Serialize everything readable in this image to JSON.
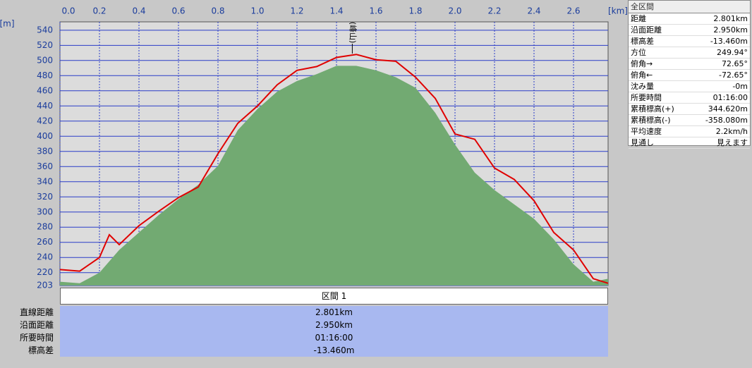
{
  "chart_data": {
    "type": "area-line",
    "x_unit": "[km]",
    "y_unit": "[m]",
    "annotation": "(峰山)",
    "annotation_x": 1.48,
    "x": [
      0,
      0.1,
      0.2,
      0.25,
      0.3,
      0.4,
      0.5,
      0.6,
      0.7,
      0.8,
      0.9,
      1.0,
      1.1,
      1.2,
      1.3,
      1.4,
      1.5,
      1.6,
      1.7,
      1.8,
      1.9,
      2.0,
      2.1,
      2.2,
      2.3,
      2.4,
      2.5,
      2.6,
      2.7,
      2.775
    ],
    "series": [
      {
        "kind": "area",
        "color": "#72aa72",
        "values": [
          208,
          206,
          220,
          235,
          250,
          273,
          296,
          317,
          336,
          361,
          408,
          436,
          459,
          473,
          482,
          493,
          493,
          487,
          478,
          464,
          431,
          389,
          352,
          329,
          310,
          291,
          264,
          231,
          208,
          212
        ]
      },
      {
        "kind": "line",
        "color": "#e00000",
        "values": [
          224,
          222,
          240,
          270,
          257,
          282,
          301,
          319,
          333,
          377,
          417,
          440,
          468,
          487,
          492,
          504,
          508,
          501,
          499,
          478,
          450,
          403,
          396,
          358,
          343,
          315,
          273,
          250,
          212,
          206
        ]
      }
    ],
    "xlim": [
      0,
      2.775
    ],
    "xticks": [
      {
        "value": 0,
        "label": "0.0"
      },
      0.2,
      0.4,
      0.6,
      0.8,
      {
        "value": 1,
        "label": "1.0"
      },
      1.2,
      1.4,
      1.6,
      1.8,
      {
        "value": 2,
        "label": "2.0"
      },
      2.2,
      2.4,
      2.6
    ],
    "ylim": [
      203,
      551
    ],
    "yticks": [
      203,
      220,
      240,
      260,
      280,
      300,
      320,
      340,
      360,
      380,
      400,
      420,
      440,
      460,
      480,
      500,
      520,
      540
    ],
    "grid": true
  },
  "summary_panel": {
    "title": "全区間",
    "rows": [
      [
        "距離",
        "2.801km"
      ],
      [
        "沿面距離",
        "2.950km"
      ],
      [
        "標高差",
        "-13.460m"
      ],
      [
        "方位",
        "249.94°"
      ],
      [
        "俯角→",
        "72.65°"
      ],
      [
        "俯角←",
        "-72.65°"
      ],
      [
        "沈み量",
        "-0m"
      ],
      [
        "所要時間",
        "01:16:00"
      ],
      [
        "累積標高(+)",
        "344.620m"
      ],
      [
        "累積標高(-)",
        "-358.080m"
      ],
      [
        "平均速度",
        "2.2km/h"
      ],
      [
        "見通し",
        "見えます"
      ]
    ]
  },
  "section_table": {
    "title": "区間 1",
    "rows": [
      [
        "直線距離",
        "2.801km"
      ],
      [
        "沿面距離",
        "2.950km"
      ],
      [
        "所要時間",
        "01:16:00"
      ],
      [
        "標高差",
        "-13.460m"
      ]
    ]
  }
}
